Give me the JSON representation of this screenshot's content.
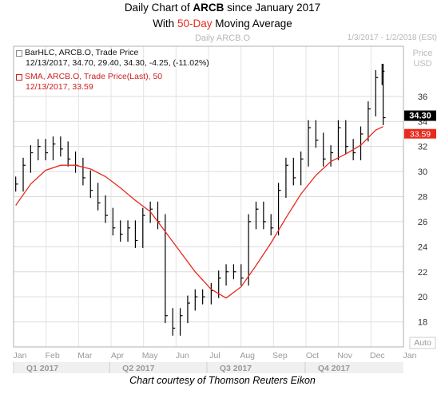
{
  "header": {
    "title_prefix": "Daily Chart of ",
    "ticker": "ARCB",
    "title_suffix": " since January 2017",
    "subtitle_prefix": "With ",
    "subtitle_highlight": "50-Day",
    "subtitle_suffix": " Moving Average"
  },
  "chart_label": "Daily ARCB.O",
  "date_range": "1/3/2017 - 1/2/2018 (ESt)",
  "legend": {
    "price_title": "BarHLC, ARCB.O, Trade Price",
    "price_values": "12/13/2017, 34.70, 29.40, 34.30, -4.25, (-11.02%)",
    "sma_title": "SMA, ARCB.O, Trade Price(Last),  50",
    "sma_values": "12/13/2017, 33.59"
  },
  "axis": {
    "y_unit_top": "Price",
    "y_unit_bottom": "USD",
    "x_auto": "Auto",
    "last_price_label": "34.30",
    "sma_label": "33.59"
  },
  "footer": "Chart courtesy of Thomson Reuters Eikon",
  "colors": {
    "price_bars": "#000000",
    "sma_line": "#e8291c",
    "last_price_tag": "#000000",
    "sma_tag": "#e8291c",
    "title_highlight": "#e8291c"
  },
  "chart_data": {
    "type": "line",
    "title": "Daily Chart of ARCB since January 2017",
    "subtitle": "With 50-Day Moving Average",
    "xlabel": "",
    "ylabel": "",
    "ylim": [
      16,
      40
    ],
    "y_ticks": [
      18,
      20,
      22,
      24,
      26,
      28,
      30,
      32,
      34,
      36
    ],
    "month_ticks": [
      "Jan",
      "Feb",
      "Mar",
      "Apr",
      "May",
      "Jun",
      "Jul",
      "Aug",
      "Sep",
      "Oct",
      "Nov",
      "Dec",
      "Jan"
    ],
    "quarters": [
      "Q1 2017",
      "Q2 2017",
      "Q3 2017",
      "Q4 2017"
    ],
    "grid": true,
    "series": [
      {
        "name": "BarHLC, ARCB.O, Trade Price",
        "kind": "ohlc_bar_closes",
        "x": [
          "2017-01-03",
          "2017-01-10",
          "2017-01-17",
          "2017-01-24",
          "2017-01-31",
          "2017-02-07",
          "2017-02-14",
          "2017-02-21",
          "2017-02-28",
          "2017-03-07",
          "2017-03-14",
          "2017-03-21",
          "2017-03-28",
          "2017-04-04",
          "2017-04-11",
          "2017-04-18",
          "2017-04-25",
          "2017-05-02",
          "2017-05-09",
          "2017-05-16",
          "2017-05-23",
          "2017-05-30",
          "2017-06-06",
          "2017-06-13",
          "2017-06-20",
          "2017-06-27",
          "2017-07-05",
          "2017-07-12",
          "2017-07-19",
          "2017-07-26",
          "2017-08-02",
          "2017-08-09",
          "2017-08-16",
          "2017-08-23",
          "2017-08-30",
          "2017-09-06",
          "2017-09-13",
          "2017-09-20",
          "2017-09-27",
          "2017-10-04",
          "2017-10-11",
          "2017-10-18",
          "2017-10-25",
          "2017-11-01",
          "2017-11-08",
          "2017-11-15",
          "2017-11-22",
          "2017-11-29",
          "2017-12-06",
          "2017-12-12",
          "2017-12-13"
        ],
        "close": [
          29.0,
          30.5,
          31.5,
          32.0,
          31.5,
          32.2,
          31.8,
          31.0,
          30.5,
          29.5,
          28.5,
          27.5,
          26.5,
          25.5,
          25.0,
          25.5,
          24.5,
          26.5,
          27.0,
          26.0,
          18.5,
          17.5,
          18.5,
          19.5,
          20.0,
          20.0,
          20.5,
          21.5,
          22.0,
          22.0,
          21.5,
          26.0,
          27.0,
          26.0,
          25.5,
          28.5,
          30.5,
          29.5,
          31.0,
          33.5,
          32.5,
          31.0,
          31.5,
          33.5,
          32.0,
          31.5,
          33.0,
          35.0,
          37.5,
          38.0,
          34.3
        ]
      },
      {
        "name": "SMA, ARCB.O, Trade Price(Last),  50",
        "kind": "line",
        "x": [
          "2017-01-03",
          "2017-01-17",
          "2017-01-31",
          "2017-02-14",
          "2017-02-28",
          "2017-03-14",
          "2017-03-28",
          "2017-04-11",
          "2017-04-25",
          "2017-05-09",
          "2017-05-23",
          "2017-06-06",
          "2017-06-20",
          "2017-07-05",
          "2017-07-19",
          "2017-08-02",
          "2017-08-16",
          "2017-08-30",
          "2017-09-13",
          "2017-09-27",
          "2017-10-11",
          "2017-10-25",
          "2017-11-08",
          "2017-11-22",
          "2017-12-06",
          "2017-12-13"
        ],
        "values": [
          27.3,
          29.0,
          30.1,
          30.5,
          30.5,
          30.2,
          29.6,
          28.7,
          27.7,
          26.8,
          25.2,
          23.6,
          22.0,
          20.6,
          19.9,
          20.8,
          22.5,
          24.3,
          26.3,
          28.2,
          29.7,
          30.8,
          31.4,
          32.1,
          33.3,
          33.59
        ]
      }
    ]
  }
}
